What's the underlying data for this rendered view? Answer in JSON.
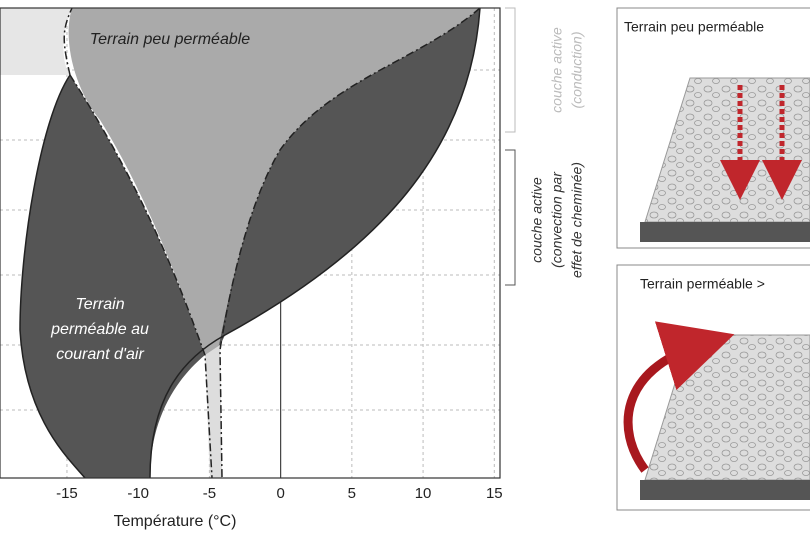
{
  "chart_data": {
    "type": "area",
    "xlabel": "Température (°C)",
    "xlim": [
      -19.7,
      15.4
    ],
    "xticks": [
      -15,
      -10,
      -5,
      0,
      5,
      10,
      15
    ],
    "grid": true,
    "region_labels": {
      "low_permeability": "Terrain peu perméable",
      "permeable": [
        "Terrain",
        "perméable au",
        "courant d'air"
      ]
    },
    "brackets": {
      "conduction": [
        "couche active",
        "(conduction)"
      ],
      "convection": [
        "couche active",
        "(convection par",
        "effet de cheminée)"
      ]
    }
  },
  "panels": [
    {
      "title": "Terrain peu perméable"
    },
    {
      "title": "Terrain perméable >"
    }
  ]
}
